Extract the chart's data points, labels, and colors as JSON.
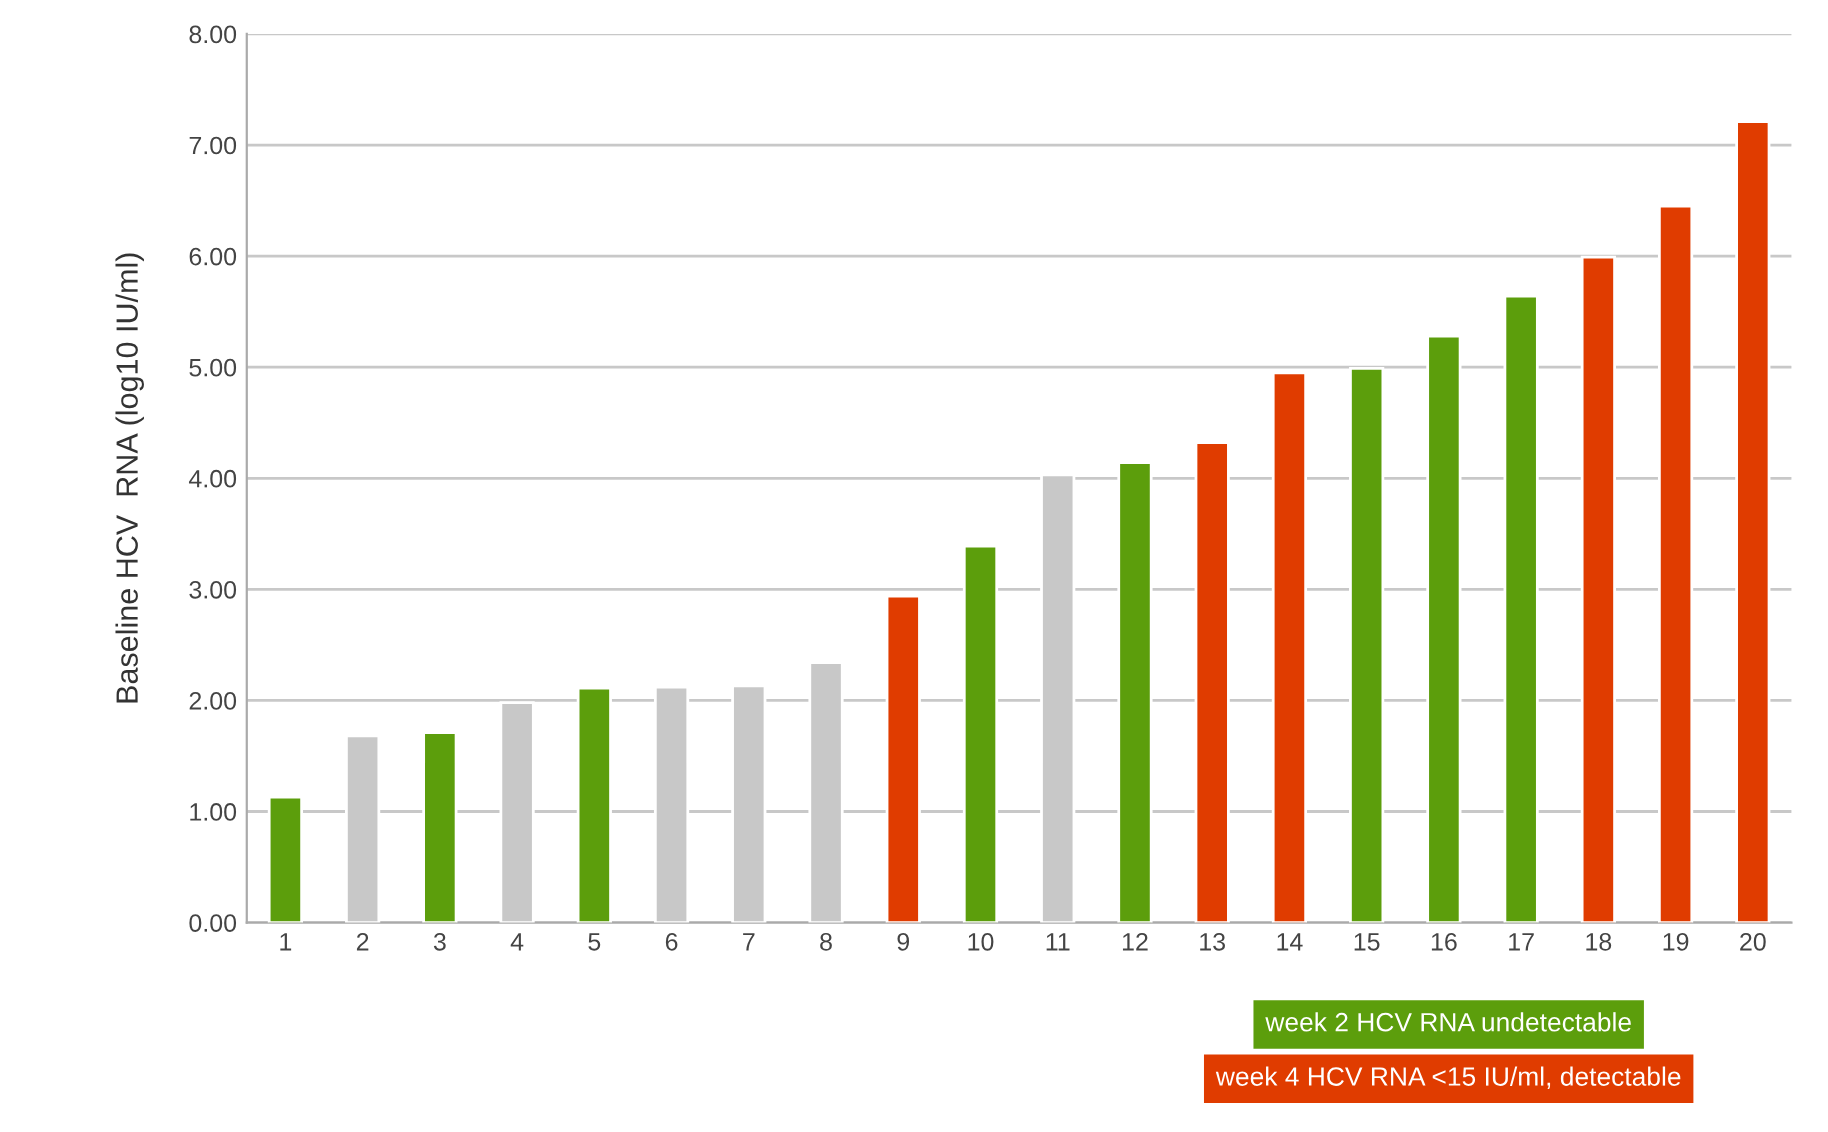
{
  "chart_data": {
    "type": "bar",
    "ylabel": "Baseline HCV  RNA (log10 IU/ml)",
    "categories": [
      "1",
      "2",
      "3",
      "4",
      "5",
      "6",
      "7",
      "8",
      "9",
      "10",
      "11",
      "12",
      "13",
      "14",
      "15",
      "16",
      "17",
      "18",
      "19",
      "20"
    ],
    "series": [
      {
        "name": "week 2 HCV RNA undetectable",
        "color": "#5c9e0c",
        "values": [
          1.13,
          null,
          1.71,
          null,
          2.11,
          null,
          null,
          null,
          null,
          3.39,
          null,
          4.14,
          null,
          null,
          4.99,
          5.28,
          5.64,
          null,
          null,
          null
        ]
      },
      {
        "name": "week 4 HCV RNA <15 IU/ml, detectable",
        "color": "#e03c00",
        "values": [
          null,
          null,
          null,
          null,
          null,
          null,
          null,
          null,
          2.94,
          null,
          null,
          null,
          4.32,
          4.95,
          null,
          null,
          null,
          5.99,
          6.45,
          7.21
        ]
      },
      {
        "color": "#c8c8c8",
        "values": [
          null,
          1.68,
          null,
          1.98,
          null,
          2.12,
          2.13,
          2.34,
          null,
          null,
          4.03,
          null,
          null,
          null,
          null,
          null,
          null,
          null,
          null,
          null
        ]
      }
    ],
    "ylim": [
      0,
      8
    ],
    "yticks": [
      {
        "value": 0,
        "label": "0.00"
      },
      {
        "value": 1,
        "label": "1.00"
      },
      {
        "value": 2,
        "label": "2.00"
      },
      {
        "value": 3,
        "label": "3.00"
      },
      {
        "value": 4,
        "label": "4.00"
      },
      {
        "value": 5,
        "label": "5.00"
      },
      {
        "value": 6,
        "label": "6.00"
      },
      {
        "value": 7,
        "label": "7.00"
      },
      {
        "value": 8,
        "label": "8.00"
      }
    ],
    "grid": "y",
    "legend": "bottom right"
  }
}
